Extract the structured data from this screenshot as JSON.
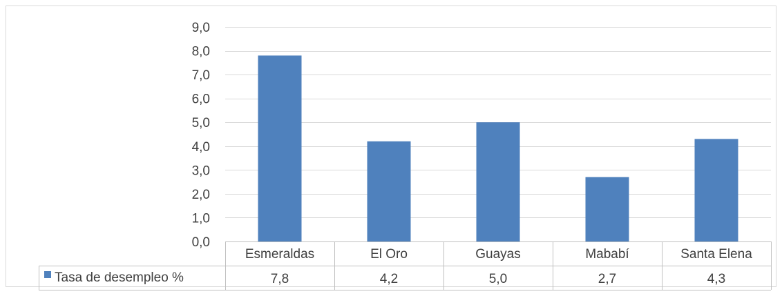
{
  "chart_data": {
    "type": "bar",
    "categories": [
      "Esmeraldas",
      "El Oro",
      "Guayas",
      "Mababí",
      "Santa Elena"
    ],
    "series": [
      {
        "name": "Tasa de desempleo %",
        "values": [
          7.8,
          4.2,
          5.0,
          2.7,
          4.3
        ],
        "color": "#4F81BD"
      }
    ],
    "value_labels": [
      "7,8",
      "4,2",
      "5,0",
      "2,7",
      "4,3"
    ],
    "y_ticks": [
      "0,0",
      "1,0",
      "2,0",
      "3,0",
      "4,0",
      "5,0",
      "6,0",
      "7,0",
      "8,0",
      "9,0"
    ],
    "ylim": [
      0,
      9
    ],
    "y_step": 1,
    "grid": true,
    "legend": "data-table",
    "colors": {
      "bar": "#4F81BD",
      "grid": "#D9D9D9",
      "text": "#404040",
      "border": "#BFBFBF"
    }
  }
}
